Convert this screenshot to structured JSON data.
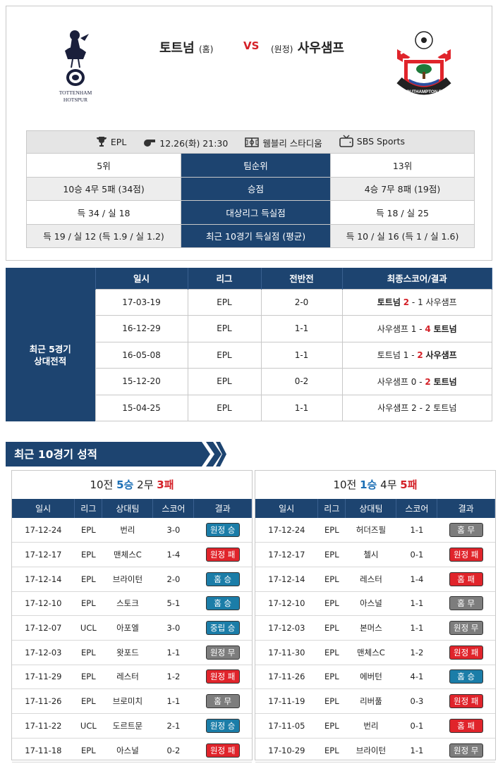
{
  "match": {
    "home_name": "토트넘",
    "home_tag": "(홈)",
    "vs": "VS",
    "away_tag": "(원정)",
    "away_name": "사우샘프",
    "home_logo_text_1": "TOTTENHAM",
    "home_logo_text_2": "HOTSPUR",
    "away_logo_text": "SOUTHAMPTON FC"
  },
  "info": {
    "league": "EPL",
    "datetime": "12.26(화) 21:30",
    "stadium": "웸블리 스타디움",
    "broadcast": "SBS Sports"
  },
  "compare": [
    {
      "home": "5위",
      "label": "팀순위",
      "away": "13위"
    },
    {
      "home": "10승 4무 5패 (34점)",
      "label": "승점",
      "away": "4승 7무 8패 (19점)"
    },
    {
      "home": "득 34 / 실 18",
      "label": "대상리그 득실점",
      "away": "득 18 / 실 25"
    },
    {
      "home": "득 19 / 실 12 (득 1.9 / 실 1.2)",
      "label": "최근 10경기 득실점 (평균)",
      "away": "득 10 / 실 16 (득 1 / 실 1.6)"
    }
  ],
  "h2h": {
    "label_1": "최근 5경기",
    "label_2": "상대전적",
    "headers": [
      "일시",
      "리그",
      "전반전",
      "최종스코어/결과"
    ],
    "rows": [
      {
        "date": "17-03-19",
        "league": "EPL",
        "half": "2-0",
        "home": "토트넘",
        "hs": "2",
        "dash": "-",
        "as": "1",
        "away": "사우샘프",
        "winner": "home"
      },
      {
        "date": "16-12-29",
        "league": "EPL",
        "half": "1-1",
        "home": "사우샘프",
        "hs": "1",
        "dash": "-",
        "as": "4",
        "away": "토트넘",
        "winner": "away"
      },
      {
        "date": "16-05-08",
        "league": "EPL",
        "half": "1-1",
        "home": "토트넘",
        "hs": "1",
        "dash": "-",
        "as": "2",
        "away": "사우샘프",
        "winner": "away"
      },
      {
        "date": "15-12-20",
        "league": "EPL",
        "half": "0-2",
        "home": "사우샘프",
        "hs": "0",
        "dash": "-",
        "as": "2",
        "away": "토트넘",
        "winner": "away"
      },
      {
        "date": "15-04-25",
        "league": "EPL",
        "half": "1-1",
        "home": "사우샘프",
        "hs": "2",
        "dash": "-",
        "as": "2",
        "away": "토트넘",
        "winner": "none"
      }
    ]
  },
  "recent": {
    "title": "최근 10경기 성적",
    "headers": [
      "일시",
      "리그",
      "상대팀",
      "스코어",
      "결과"
    ],
    "home": {
      "summary": {
        "total": "10전",
        "win": "5승",
        "draw": "2무",
        "loss": "3패"
      },
      "rows": [
        {
          "date": "17-12-24",
          "league": "EPL",
          "opp": "번리",
          "score": "3-0",
          "result": "원정 승",
          "type": "win"
        },
        {
          "date": "17-12-17",
          "league": "EPL",
          "opp": "맨체스C",
          "score": "1-4",
          "result": "원정 패",
          "type": "loss"
        },
        {
          "date": "17-12-14",
          "league": "EPL",
          "opp": "브라이턴",
          "score": "2-0",
          "result": "홈 승",
          "type": "win"
        },
        {
          "date": "17-12-10",
          "league": "EPL",
          "opp": "스토크",
          "score": "5-1",
          "result": "홈 승",
          "type": "win"
        },
        {
          "date": "17-12-07",
          "league": "UCL",
          "opp": "아포엘",
          "score": "3-0",
          "result": "중립 승",
          "type": "win"
        },
        {
          "date": "17-12-03",
          "league": "EPL",
          "opp": "왓포드",
          "score": "1-1",
          "result": "원정 무",
          "type": "draw"
        },
        {
          "date": "17-11-29",
          "league": "EPL",
          "opp": "레스터",
          "score": "1-2",
          "result": "원정 패",
          "type": "loss"
        },
        {
          "date": "17-11-26",
          "league": "EPL",
          "opp": "브로미치",
          "score": "1-1",
          "result": "홈 무",
          "type": "draw"
        },
        {
          "date": "17-11-22",
          "league": "UCL",
          "opp": "도르트문",
          "score": "2-1",
          "result": "원정 승",
          "type": "win"
        },
        {
          "date": "17-11-18",
          "league": "EPL",
          "opp": "아스널",
          "score": "0-2",
          "result": "원정 패",
          "type": "loss"
        }
      ]
    },
    "away": {
      "summary": {
        "total": "10전",
        "win": "1승",
        "draw": "4무",
        "loss": "5패"
      },
      "rows": [
        {
          "date": "17-12-24",
          "league": "EPL",
          "opp": "허더즈필",
          "score": "1-1",
          "result": "홈 무",
          "type": "draw"
        },
        {
          "date": "17-12-17",
          "league": "EPL",
          "opp": "첼시",
          "score": "0-1",
          "result": "원정 패",
          "type": "loss"
        },
        {
          "date": "17-12-14",
          "league": "EPL",
          "opp": "레스터",
          "score": "1-4",
          "result": "홈 패",
          "type": "loss"
        },
        {
          "date": "17-12-10",
          "league": "EPL",
          "opp": "아스널",
          "score": "1-1",
          "result": "홈 무",
          "type": "draw"
        },
        {
          "date": "17-12-03",
          "league": "EPL",
          "opp": "본머스",
          "score": "1-1",
          "result": "원정 무",
          "type": "draw"
        },
        {
          "date": "17-11-30",
          "league": "EPL",
          "opp": "맨체스C",
          "score": "1-2",
          "result": "원정 패",
          "type": "loss"
        },
        {
          "date": "17-11-26",
          "league": "EPL",
          "opp": "에버턴",
          "score": "4-1",
          "result": "홈 승",
          "type": "win"
        },
        {
          "date": "17-11-19",
          "league": "EPL",
          "opp": "리버풀",
          "score": "0-3",
          "result": "원정 패",
          "type": "loss"
        },
        {
          "date": "17-11-05",
          "league": "EPL",
          "opp": "번리",
          "score": "0-1",
          "result": "홈 패",
          "type": "loss"
        },
        {
          "date": "17-10-29",
          "league": "EPL",
          "opp": "브라이턴",
          "score": "1-1",
          "result": "원정 무",
          "type": "draw"
        }
      ]
    }
  },
  "colors": {
    "navy": "#1d4470",
    "win": "#1b7da8",
    "loss": "#e0242b",
    "draw": "#7d7d7d",
    "accent": "#d42027"
  }
}
